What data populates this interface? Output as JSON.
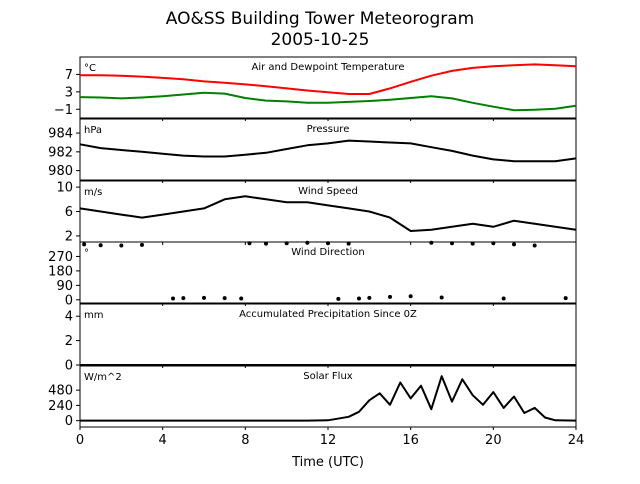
{
  "figure": {
    "title_line1": "AO&SS Building Tower Meteorogram",
    "title_line2": "2005-10-25",
    "xlabel": "Time (UTC)"
  },
  "chart_data": [
    {
      "type": "line",
      "title": "Air and Dewpoint Temperature",
      "unit": "°C",
      "xlim": [
        0,
        24
      ],
      "ylim": [
        -3,
        11
      ],
      "yticks": [
        -1,
        3,
        7
      ],
      "series": [
        {
          "color": "#ff0000",
          "x": [
            0,
            1,
            2,
            3,
            4,
            5,
            6,
            7,
            8,
            9,
            10,
            11,
            12,
            13,
            14,
            15,
            16,
            17,
            18,
            19,
            20,
            21,
            22,
            23,
            24
          ],
          "y": [
            6.8,
            6.8,
            6.7,
            6.5,
            6.2,
            5.9,
            5.4,
            5.1,
            4.7,
            4.3,
            3.8,
            3.3,
            2.9,
            2.5,
            2.5,
            3.8,
            5.3,
            6.7,
            7.8,
            8.5,
            8.9,
            9.1,
            9.3,
            9.1,
            8.9
          ]
        },
        {
          "color": "#008000",
          "x": [
            0,
            1,
            2,
            3,
            4,
            5,
            6,
            7,
            8,
            9,
            10,
            11,
            12,
            13,
            14,
            15,
            16,
            17,
            18,
            19,
            20,
            21,
            22,
            23,
            24
          ],
          "y": [
            1.8,
            1.7,
            1.5,
            1.7,
            2.0,
            2.4,
            2.8,
            2.6,
            1.6,
            1.0,
            0.8,
            0.5,
            0.5,
            0.7,
            0.9,
            1.2,
            1.6,
            2.0,
            1.5,
            0.5,
            -0.4,
            -1.2,
            -1.1,
            -0.9,
            -0.2
          ]
        }
      ]
    },
    {
      "type": "line",
      "title": "Pressure",
      "unit": "hPa",
      "xlim": [
        0,
        24
      ],
      "ylim": [
        979,
        985.5
      ],
      "yticks": [
        980,
        982,
        984
      ],
      "series": [
        {
          "color": "#000000",
          "x": [
            0,
            1,
            2,
            3,
            4,
            5,
            6,
            7,
            8,
            9,
            10,
            11,
            12,
            13,
            14,
            15,
            16,
            17,
            18,
            19,
            20,
            21,
            22,
            23,
            24
          ],
          "y": [
            982.8,
            982.4,
            982.2,
            982.0,
            981.8,
            981.6,
            981.5,
            981.5,
            981.7,
            981.9,
            982.3,
            982.7,
            982.9,
            983.2,
            983.1,
            983.0,
            982.9,
            982.5,
            982.1,
            981.6,
            981.2,
            981.0,
            981.0,
            981.0,
            981.3
          ]
        }
      ]
    },
    {
      "type": "line",
      "title": "Wind Speed",
      "unit": "m/s",
      "xlim": [
        0,
        24
      ],
      "ylim": [
        1,
        11
      ],
      "yticks": [
        2,
        6,
        10
      ],
      "series": [
        {
          "color": "#000000",
          "x": [
            0,
            1,
            2,
            3,
            4,
            5,
            6,
            7,
            8,
            9,
            10,
            11,
            12,
            13,
            14,
            15,
            16,
            17,
            18,
            19,
            20,
            21,
            22,
            23,
            24
          ],
          "y": [
            6.5,
            6.0,
            5.5,
            5.0,
            5.5,
            6.0,
            6.5,
            8.0,
            8.5,
            8.0,
            7.5,
            7.5,
            7.0,
            6.5,
            6.0,
            5.0,
            2.8,
            3.0,
            3.5,
            4.0,
            3.5,
            4.5,
            4.0,
            3.5,
            3.0
          ]
        }
      ]
    },
    {
      "type": "scatter",
      "title": "Wind Direction",
      "unit": "°",
      "xlim": [
        0,
        24
      ],
      "ylim": [
        -20,
        360
      ],
      "yticks": [
        0,
        90,
        180,
        270
      ],
      "series": [
        {
          "color": "#000000",
          "x": [
            0.2,
            1,
            2,
            3,
            4.5,
            5,
            6,
            7,
            7.8,
            8.2,
            9,
            10,
            11,
            12,
            12.5,
            13,
            13.5,
            14,
            15,
            16,
            17,
            17.5,
            18,
            19,
            20,
            20.5,
            21,
            22,
            23.5
          ],
          "y": [
            345,
            340,
            338,
            342,
            8,
            10,
            12,
            10,
            8,
            352,
            350,
            352,
            355,
            352,
            6,
            350,
            8,
            12,
            18,
            22,
            355,
            14,
            352,
            350,
            352,
            8,
            345,
            338,
            10
          ]
        }
      ]
    },
    {
      "type": "line",
      "title": "Accumulated Precipitation Since 0Z",
      "unit": "mm",
      "xlim": [
        0,
        24
      ],
      "ylim": [
        0,
        5
      ],
      "yticks": [
        0,
        2,
        4
      ],
      "series": [
        {
          "color": "#000000",
          "x": [
            0,
            24
          ],
          "y": [
            0,
            0
          ]
        }
      ]
    },
    {
      "type": "line",
      "title": "Solar Flux",
      "unit": "W/m^2",
      "xlim": [
        0,
        24
      ],
      "ylim": [
        -100,
        860
      ],
      "yticks": [
        0,
        240,
        480
      ],
      "series": [
        {
          "color": "#000000",
          "x": [
            0,
            1,
            2,
            3,
            4,
            5,
            6,
            7,
            8,
            9,
            10,
            11,
            12,
            13,
            13.5,
            14,
            14.5,
            15,
            15.5,
            16,
            16.5,
            17,
            17.5,
            18,
            18.5,
            19,
            19.5,
            20,
            20.5,
            21,
            21.5,
            22,
            22.5,
            23,
            24
          ],
          "y": [
            0,
            0,
            0,
            0,
            0,
            0,
            0,
            0,
            0,
            0,
            0,
            0,
            5,
            60,
            140,
            320,
            430,
            250,
            600,
            350,
            550,
            180,
            700,
            300,
            650,
            400,
            250,
            450,
            200,
            380,
            120,
            200,
            50,
            5,
            0
          ]
        }
      ]
    }
  ],
  "xticks": [
    0,
    4,
    8,
    12,
    16,
    20,
    24
  ]
}
